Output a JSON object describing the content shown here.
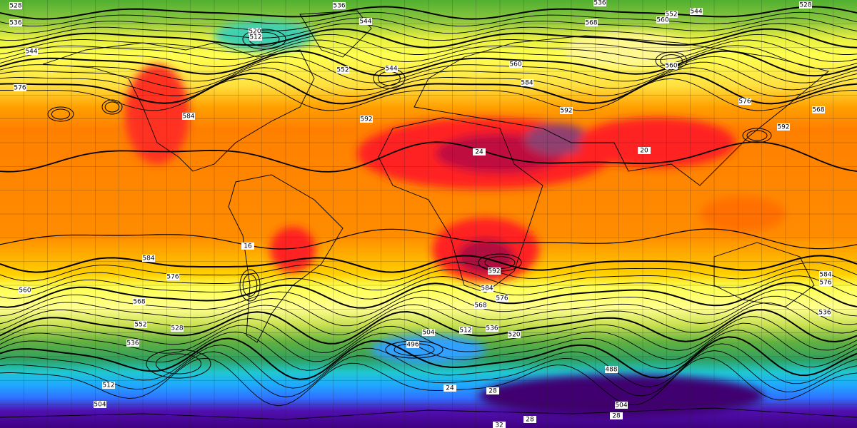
{
  "labels": [
    528,
    536,
    536,
    528,
    536,
    552,
    544,
    544,
    520,
    512,
    568,
    560,
    544,
    544,
    560,
    552,
    560,
    584,
    576,
    568,
    576,
    584,
    592,
    592,
    592,
    24,
    20,
    16,
    584,
    576,
    592,
    584,
    576,
    584,
    576,
    560,
    568,
    568,
    552,
    528,
    536,
    504,
    520,
    512,
    536,
    496,
    488,
    512,
    504,
    504,
    536,
    28,
    24,
    28,
    28,
    32
  ]
}
